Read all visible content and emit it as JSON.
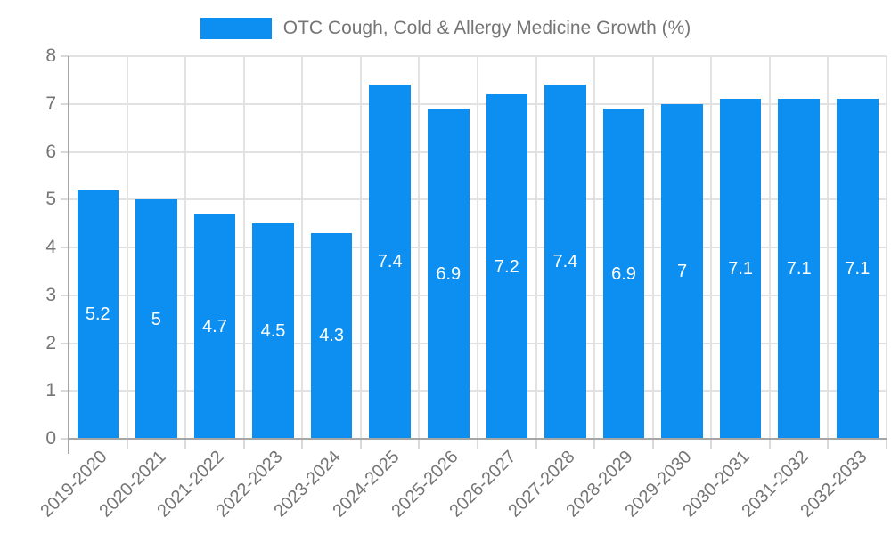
{
  "legend": {
    "label": "OTC Cough, Cold & Allergy Medicine Growth (%)"
  },
  "chart_data": {
    "type": "bar",
    "title": "OTC Cough, Cold & Allergy Medicine Growth (%)",
    "categories": [
      "2019-2020",
      "2020-2021",
      "2021-2022",
      "2022-2023",
      "2023-2024",
      "2024-2025",
      "2025-2026",
      "2026-2027",
      "2027-2028",
      "2028-2029",
      "2029-2030",
      "2030-2031",
      "2031-2032",
      "2032-2033"
    ],
    "values": [
      5.2,
      5,
      4.7,
      4.5,
      4.3,
      7.4,
      6.9,
      7.2,
      7.4,
      6.9,
      7,
      7.1,
      7.1,
      7.1
    ],
    "value_labels": [
      "5.2",
      "5",
      "4.7",
      "4.5",
      "4.3",
      "7.4",
      "6.9",
      "7.2",
      "7.4",
      "6.9",
      "7",
      "7.1",
      "7.1",
      "7.1"
    ],
    "xlabel": "",
    "ylabel": "",
    "ylim": [
      0,
      8
    ],
    "y_ticks": [
      0,
      1,
      2,
      3,
      4,
      5,
      6,
      7,
      8
    ],
    "grid": true,
    "legend_position": "top-center",
    "bar_value_label_position": "center-inside",
    "colors": {
      "bar": "#0d8ff2",
      "grid": "#e2e2e2",
      "axis": "#a6a6a6",
      "tick": "#d9d9d9",
      "text": "#757575",
      "bar_label": "#ffffff"
    }
  }
}
